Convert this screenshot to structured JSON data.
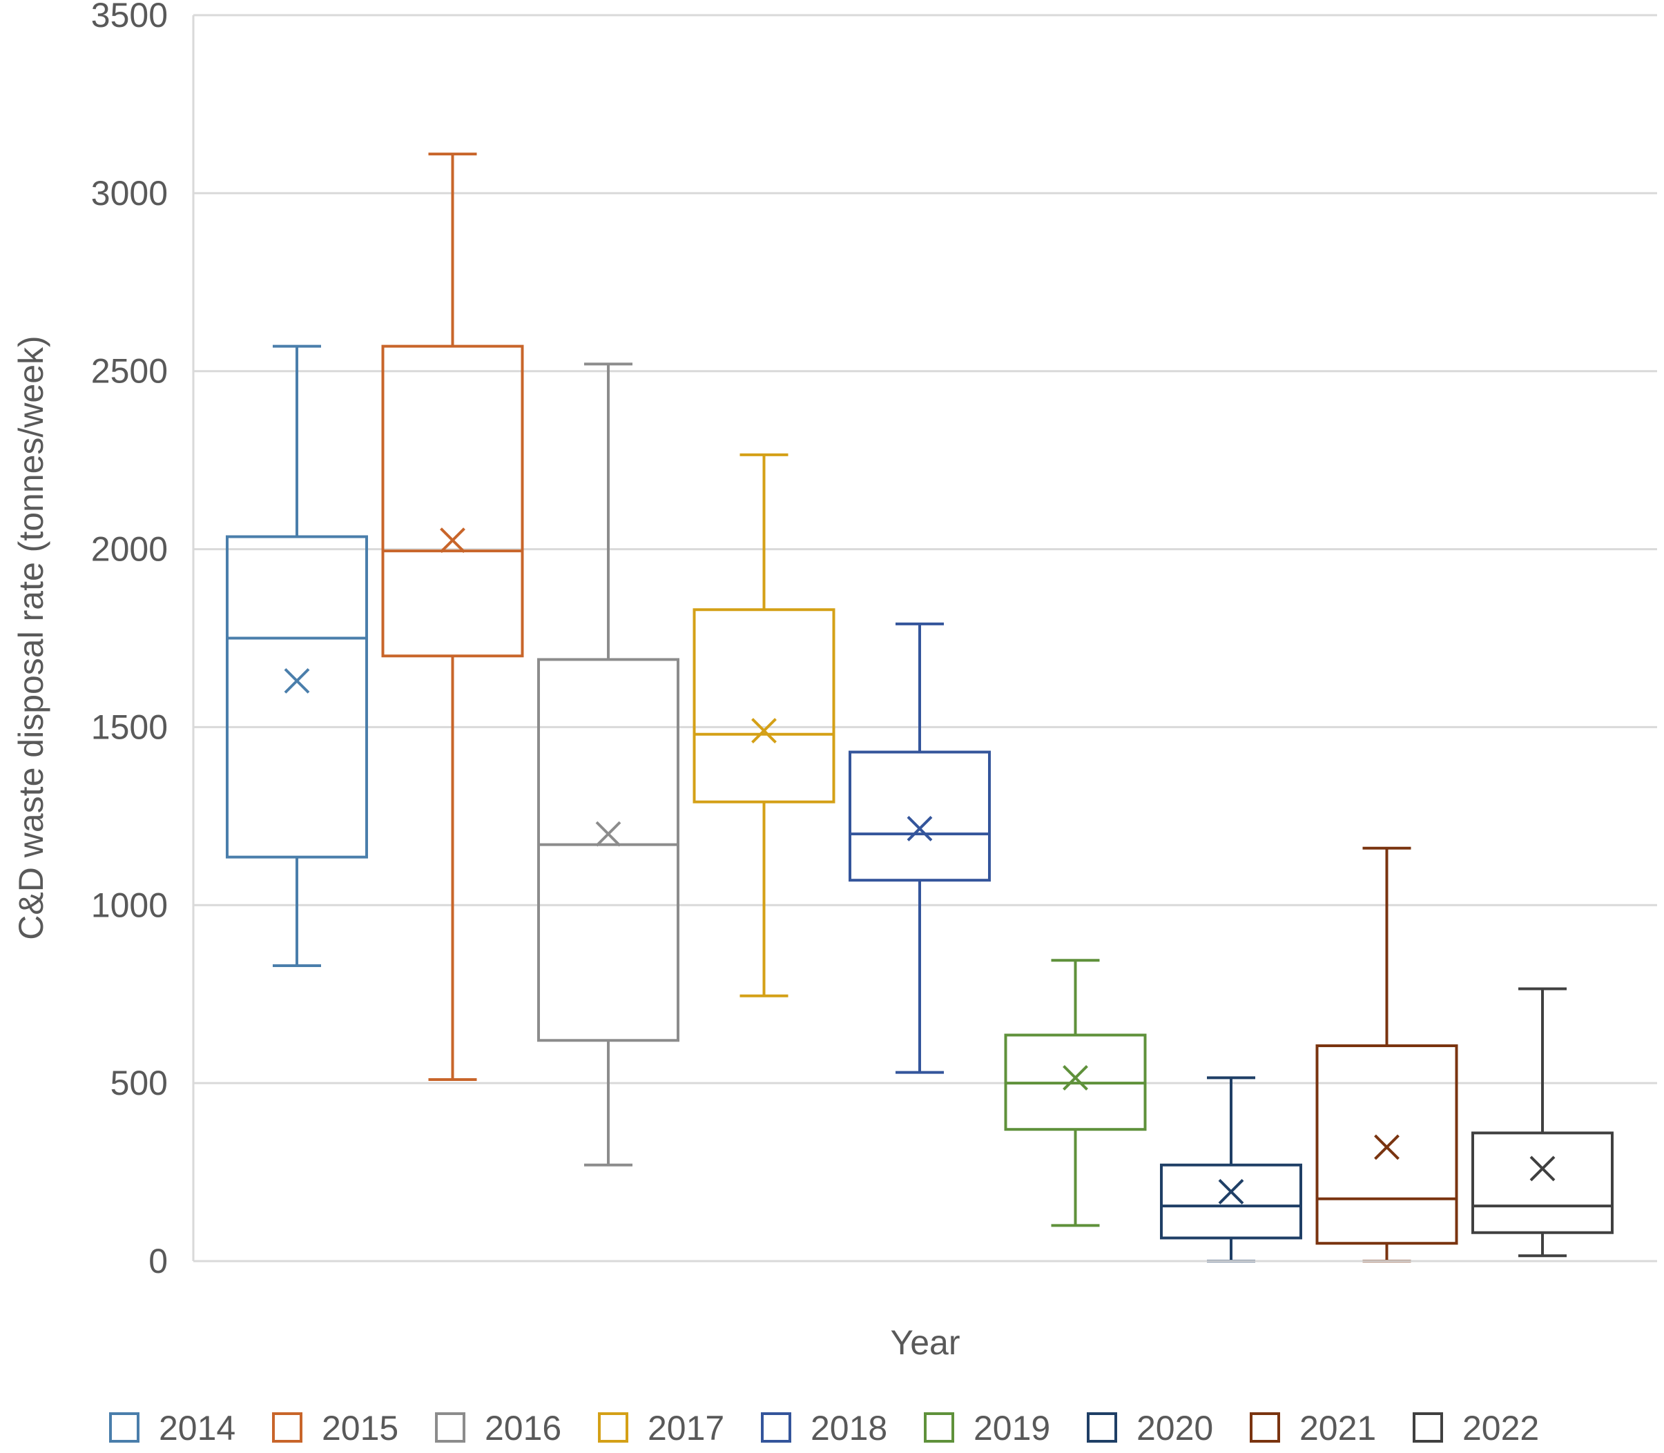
{
  "chart_data": {
    "type": "box",
    "title": "",
    "xlabel": "Year",
    "ylabel": "C&D waste disposal rate (tonnes/week)",
    "ylim": [
      0,
      3500
    ],
    "yticks": [
      0,
      500,
      1000,
      1500,
      2000,
      2500,
      3000,
      3500
    ],
    "grid": "horizontal",
    "legend_position": "bottom",
    "series": [
      {
        "name": "2014",
        "color": "#4a7eab",
        "min": 830,
        "q1": 1135,
        "median": 1750,
        "q3": 2035,
        "max": 2570,
        "mean": 1630
      },
      {
        "name": "2015",
        "color": "#c8652a",
        "min": 510,
        "q1": 1700,
        "median": 1995,
        "q3": 2570,
        "max": 3110,
        "mean": 2025
      },
      {
        "name": "2016",
        "color": "#8c8c8c",
        "min": 270,
        "q1": 620,
        "median": 1170,
        "q3": 1690,
        "max": 2520,
        "mean": 1200
      },
      {
        "name": "2017",
        "color": "#d4a017",
        "min": 745,
        "q1": 1290,
        "median": 1480,
        "q3": 1830,
        "max": 2265,
        "mean": 1490
      },
      {
        "name": "2018",
        "color": "#34559b",
        "min": 530,
        "q1": 1070,
        "median": 1200,
        "q3": 1430,
        "max": 1790,
        "mean": 1215
      },
      {
        "name": "2019",
        "color": "#5f913b",
        "min": 100,
        "q1": 370,
        "median": 500,
        "q3": 635,
        "max": 845,
        "mean": 515
      },
      {
        "name": "2020",
        "color": "#1f3f66",
        "min": 0,
        "q1": 65,
        "median": 155,
        "q3": 270,
        "max": 515,
        "mean": 195
      },
      {
        "name": "2021",
        "color": "#7a3410",
        "min": 0,
        "q1": 50,
        "median": 175,
        "q3": 605,
        "max": 1160,
        "mean": 320
      },
      {
        "name": "2022",
        "color": "#404040",
        "min": 15,
        "q1": 80,
        "median": 155,
        "q3": 360,
        "max": 765,
        "mean": 260
      }
    ]
  }
}
